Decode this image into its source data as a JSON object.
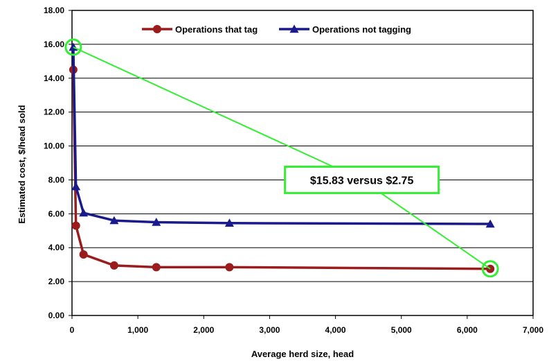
{
  "chart_data": {
    "type": "line",
    "xlabel": "Average herd size, head",
    "ylabel": "Estimated cost, $/head sold",
    "xlim": [
      0,
      7000
    ],
    "ylim": [
      0,
      18
    ],
    "x_ticks": [
      0,
      1000,
      2000,
      3000,
      4000,
      5000,
      6000,
      7000
    ],
    "x_tick_labels": [
      "0",
      "1,000",
      "2,000",
      "3,000",
      "4,000",
      "5,000",
      "6,000",
      "7,000"
    ],
    "y_ticks": [
      0,
      2,
      4,
      6,
      8,
      10,
      12,
      14,
      16,
      18
    ],
    "y_tick_labels": [
      "0.00",
      "2.00",
      "4.00",
      "6.00",
      "8.00",
      "10.00",
      "12.00",
      "14.00",
      "16.00",
      "18.00"
    ],
    "grid": "horizontal",
    "legend_position": "top",
    "series": [
      {
        "name": "Operations that tag",
        "color": "#9b1c1c",
        "marker": "circle",
        "x": [
          20,
          60,
          175,
          640,
          1280,
          2390,
          6350
        ],
        "y": [
          14.5,
          5.3,
          3.6,
          2.95,
          2.85,
          2.85,
          2.75
        ]
      },
      {
        "name": "Operations not tagging",
        "color": "#1a1a8c",
        "marker": "triangle",
        "x": [
          20,
          60,
          175,
          640,
          1280,
          2390,
          6350
        ],
        "y": [
          15.83,
          7.6,
          6.05,
          5.6,
          5.5,
          5.45,
          5.4
        ]
      }
    ],
    "annotation": {
      "text": "$15.83 versus $2.75",
      "color": "#33ee33",
      "from": {
        "x": 20,
        "y": 15.83
      },
      "to": {
        "x": 6350,
        "y": 2.75
      },
      "anchor": {
        "x": 4400,
        "y": 8.0
      }
    }
  }
}
